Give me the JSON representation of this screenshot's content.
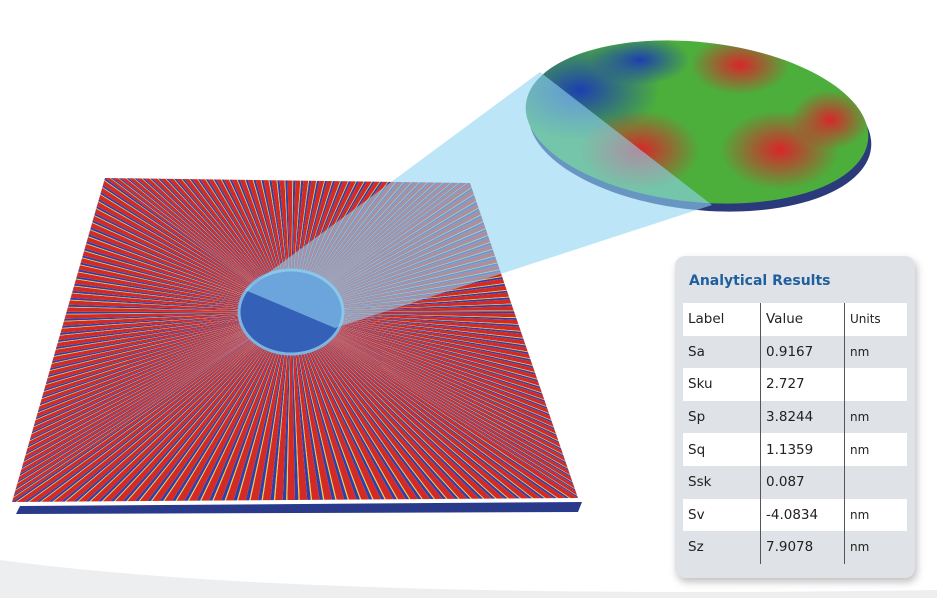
{
  "panel": {
    "title": "Analytical Results",
    "table": {
      "header": [
        "Label",
        "Value",
        "Units"
      ],
      "rows": [
        [
          "Sa",
          "0.9167",
          "nm"
        ],
        [
          "Sku",
          "2.727",
          ""
        ],
        [
          "Sp",
          "3.8244",
          "nm"
        ],
        [
          "Sq",
          "1.1359",
          "nm"
        ],
        [
          "Ssk",
          "0.087",
          ""
        ],
        [
          "Sv",
          "-4.0834",
          "nm"
        ],
        [
          "Sz",
          "7.9078",
          "nm"
        ]
      ]
    }
  }
}
